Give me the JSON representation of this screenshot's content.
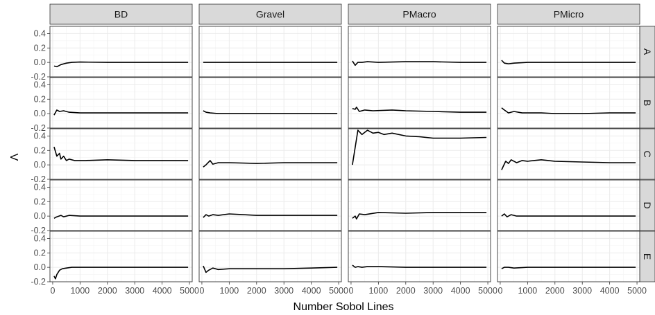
{
  "chart_data": {
    "type": "line",
    "xlabel": "Number Sobol Lines",
    "ylabel": "V",
    "xlim": [
      -100,
      5100
    ],
    "ylim": [
      -0.2,
      0.5
    ],
    "xticks": [
      0,
      1000,
      2000,
      3000,
      4000,
      5000
    ],
    "xtick_labels": [
      "0",
      "1000",
      "2000",
      "3000",
      "4000",
      "5000"
    ],
    "yticks": [
      -0.2,
      0.0,
      0.2,
      0.4
    ],
    "ytick_labels": [
      "-0.2",
      "0.0",
      "0.2",
      "0.4"
    ],
    "grid": true,
    "columns": [
      "BD",
      "Gravel",
      "PMacro",
      "PMicro"
    ],
    "rows": [
      "A",
      "B",
      "C",
      "D",
      "E"
    ],
    "panels": [
      {
        "row": "A",
        "col": "BD",
        "x": [
          50,
          150,
          300,
          500,
          700,
          1000,
          2000,
          3000,
          4000,
          4950
        ],
        "y": [
          -0.05,
          -0.06,
          -0.03,
          -0.01,
          0.0,
          0.005,
          0.0,
          0.0,
          0.0,
          0.0
        ]
      },
      {
        "row": "A",
        "col": "Gravel",
        "x": [
          50,
          200,
          500,
          1000,
          2000,
          3000,
          4000,
          4950
        ],
        "y": [
          0.0,
          0.0,
          0.0,
          0.0,
          0.0,
          0.0,
          0.0,
          0.0
        ]
      },
      {
        "row": "A",
        "col": "PMacro",
        "x": [
          50,
          150,
          250,
          400,
          600,
          1000,
          2000,
          3000,
          4000,
          4950
        ],
        "y": [
          0.02,
          -0.04,
          0.0,
          0.0,
          0.01,
          0.0,
          0.01,
          0.01,
          0.0,
          0.0
        ]
      },
      {
        "row": "A",
        "col": "PMicro",
        "x": [
          50,
          150,
          300,
          500,
          1000,
          2000,
          3000,
          4000,
          4950
        ],
        "y": [
          0.03,
          -0.01,
          -0.02,
          -0.01,
          0.0,
          0.0,
          0.0,
          0.0,
          0.0
        ]
      },
      {
        "row": "B",
        "col": "BD",
        "x": [
          50,
          150,
          250,
          400,
          600,
          1000,
          2000,
          3000,
          4000,
          4950
        ],
        "y": [
          -0.02,
          0.05,
          0.03,
          0.04,
          0.02,
          0.01,
          0.01,
          0.01,
          0.01,
          0.01
        ]
      },
      {
        "row": "B",
        "col": "Gravel",
        "x": [
          50,
          150,
          300,
          600,
          1000,
          2000,
          3000,
          4000,
          4950
        ],
        "y": [
          0.04,
          0.02,
          0.01,
          0.0,
          0.0,
          0.0,
          0.0,
          0.0,
          0.0
        ]
      },
      {
        "row": "B",
        "col": "PMacro",
        "x": [
          50,
          150,
          200,
          300,
          500,
          800,
          1500,
          2000,
          3000,
          4000,
          4950
        ],
        "y": [
          0.07,
          0.06,
          0.09,
          0.03,
          0.05,
          0.04,
          0.05,
          0.04,
          0.03,
          0.02,
          0.02
        ]
      },
      {
        "row": "B",
        "col": "PMicro",
        "x": [
          50,
          150,
          300,
          500,
          800,
          1500,
          2000,
          3000,
          4000,
          4950
        ],
        "y": [
          0.08,
          0.05,
          0.01,
          0.03,
          0.01,
          0.01,
          0.0,
          0.0,
          0.01,
          0.01
        ]
      },
      {
        "row": "C",
        "col": "BD",
        "x": [
          50,
          150,
          250,
          300,
          400,
          500,
          600,
          800,
          1200,
          2000,
          3000,
          4000,
          4950
        ],
        "y": [
          0.25,
          0.12,
          0.16,
          0.08,
          0.12,
          0.06,
          0.08,
          0.06,
          0.06,
          0.07,
          0.06,
          0.06,
          0.06
        ]
      },
      {
        "row": "C",
        "col": "Gravel",
        "x": [
          50,
          150,
          300,
          400,
          600,
          1000,
          2000,
          3000,
          4000,
          4950
        ],
        "y": [
          -0.03,
          0.0,
          0.06,
          0.01,
          0.03,
          0.03,
          0.02,
          0.03,
          0.03,
          0.03
        ]
      },
      {
        "row": "C",
        "col": "PMacro",
        "x": [
          50,
          250,
          400,
          600,
          800,
          1000,
          1200,
          1500,
          2000,
          2500,
          3000,
          4000,
          4950
        ],
        "y": [
          0.0,
          0.48,
          0.42,
          0.48,
          0.44,
          0.45,
          0.42,
          0.44,
          0.4,
          0.39,
          0.37,
          0.37,
          0.38
        ]
      },
      {
        "row": "C",
        "col": "PMicro",
        "x": [
          50,
          200,
          300,
          400,
          600,
          800,
          1000,
          1500,
          2000,
          3000,
          4000,
          4950
        ],
        "y": [
          -0.07,
          0.05,
          0.02,
          0.07,
          0.03,
          0.06,
          0.05,
          0.07,
          0.05,
          0.04,
          0.03,
          0.03
        ]
      },
      {
        "row": "D",
        "col": "BD",
        "x": [
          50,
          150,
          300,
          400,
          600,
          1000,
          2000,
          3000,
          4000,
          4950
        ],
        "y": [
          -0.03,
          -0.01,
          0.01,
          -0.01,
          0.01,
          0.0,
          0.0,
          0.0,
          0.0,
          0.0
        ]
      },
      {
        "row": "D",
        "col": "Gravel",
        "x": [
          50,
          150,
          250,
          400,
          600,
          1000,
          2000,
          3000,
          4000,
          4950
        ],
        "y": [
          -0.02,
          0.02,
          0.0,
          0.02,
          0.01,
          0.03,
          0.01,
          0.01,
          0.01,
          0.01
        ]
      },
      {
        "row": "D",
        "col": "PMacro",
        "x": [
          50,
          150,
          200,
          300,
          500,
          1000,
          2000,
          3000,
          4000,
          4950
        ],
        "y": [
          -0.03,
          0.0,
          -0.04,
          0.03,
          0.02,
          0.05,
          0.04,
          0.05,
          0.05,
          0.05
        ]
      },
      {
        "row": "D",
        "col": "PMicro",
        "x": [
          50,
          150,
          250,
          400,
          600,
          1000,
          2000,
          3000,
          4000,
          4950
        ],
        "y": [
          0.0,
          0.03,
          -0.01,
          0.02,
          0.0,
          0.0,
          0.0,
          0.0,
          0.0,
          0.0
        ]
      },
      {
        "row": "E",
        "col": "BD",
        "x": [
          50,
          100,
          150,
          250,
          350,
          500,
          700,
          1000,
          2000,
          3000,
          4000,
          4950
        ],
        "y": [
          -0.12,
          -0.16,
          -0.1,
          -0.04,
          -0.02,
          -0.01,
          0.0,
          0.0,
          0.0,
          0.0,
          0.0,
          0.0
        ]
      },
      {
        "row": "E",
        "col": "Gravel",
        "x": [
          50,
          150,
          250,
          400,
          600,
          1000,
          2000,
          3000,
          4000,
          4950
        ],
        "y": [
          0.02,
          -0.07,
          -0.04,
          -0.01,
          -0.03,
          -0.02,
          -0.02,
          -0.02,
          -0.01,
          0.0
        ]
      },
      {
        "row": "E",
        "col": "PMacro",
        "x": [
          50,
          150,
          250,
          400,
          600,
          1000,
          2000,
          3000,
          4000,
          4950
        ],
        "y": [
          0.03,
          0.0,
          0.01,
          0.0,
          0.01,
          0.01,
          0.0,
          0.0,
          0.0,
          0.0
        ]
      },
      {
        "row": "E",
        "col": "PMicro",
        "x": [
          50,
          150,
          300,
          500,
          1000,
          2000,
          3000,
          4000,
          4950
        ],
        "y": [
          -0.02,
          0.0,
          0.0,
          -0.01,
          0.0,
          0.0,
          0.0,
          0.0,
          0.0
        ]
      }
    ]
  }
}
